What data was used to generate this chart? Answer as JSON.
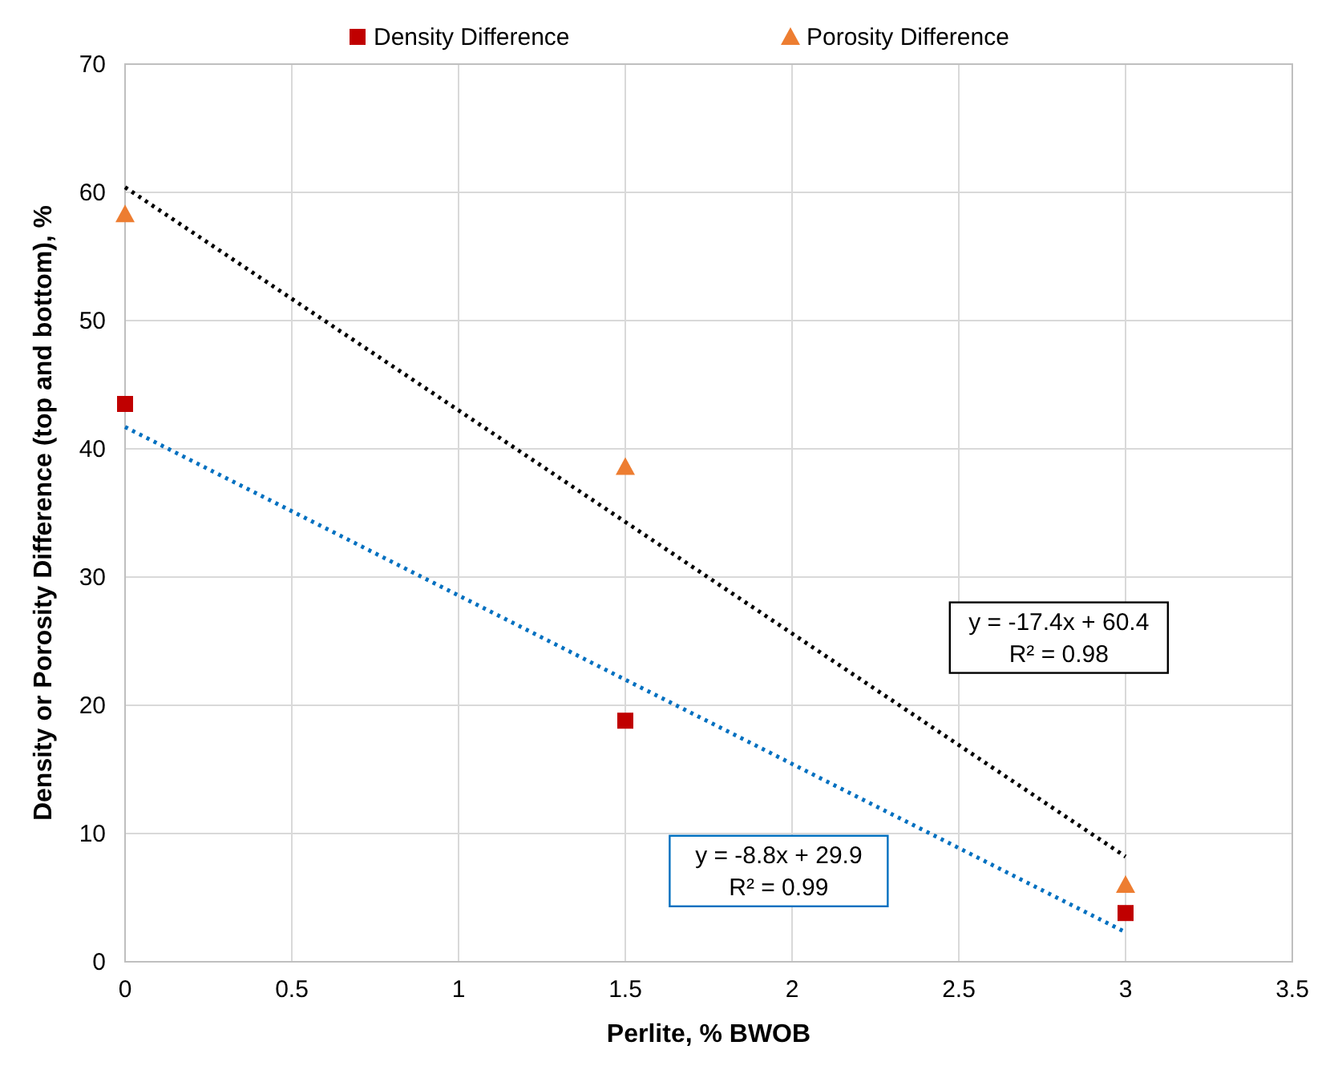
{
  "chart_data": {
    "type": "scatter",
    "xlabel": "Perlite, % BWOB",
    "ylabel": "Density or Porosity Difference (top and bottom), %",
    "xlim": [
      0,
      3.5
    ],
    "xticks": [
      0,
      0.5,
      1,
      1.5,
      2,
      2.5,
      3,
      3.5
    ],
    "ylim": [
      0,
      70
    ],
    "yticks": [
      0,
      10,
      20,
      30,
      40,
      50,
      60,
      70
    ],
    "grid": true,
    "legend": "top",
    "series": [
      {
        "name": "Density Difference",
        "color": "#c00000",
        "marker": "square",
        "x": [
          0,
          1.5,
          3
        ],
        "values": [
          43.5,
          18.8,
          3.8
        ]
      },
      {
        "name": "Porosity Difference",
        "color": "#ed7d31",
        "marker": "triangle",
        "x": [
          0,
          1.5,
          3
        ],
        "values": [
          58.3,
          38.6,
          6
        ]
      },
      {
        "type": "line",
        "color": "#000000",
        "line_style": "dotted",
        "marker": "none",
        "x": [
          0,
          3
        ],
        "values": [
          60.4,
          8.2
        ]
      },
      {
        "type": "line",
        "color": "#0070c0",
        "line_style": "dotted",
        "marker": "none",
        "x": [
          0,
          3
        ],
        "values": [
          41.7,
          2.3
        ]
      }
    ],
    "annotations": [
      "y = -17.4x + 60.4",
      "R² = 0.98",
      "y = -8.8x + 29.9",
      "R² = 0.99"
    ]
  }
}
